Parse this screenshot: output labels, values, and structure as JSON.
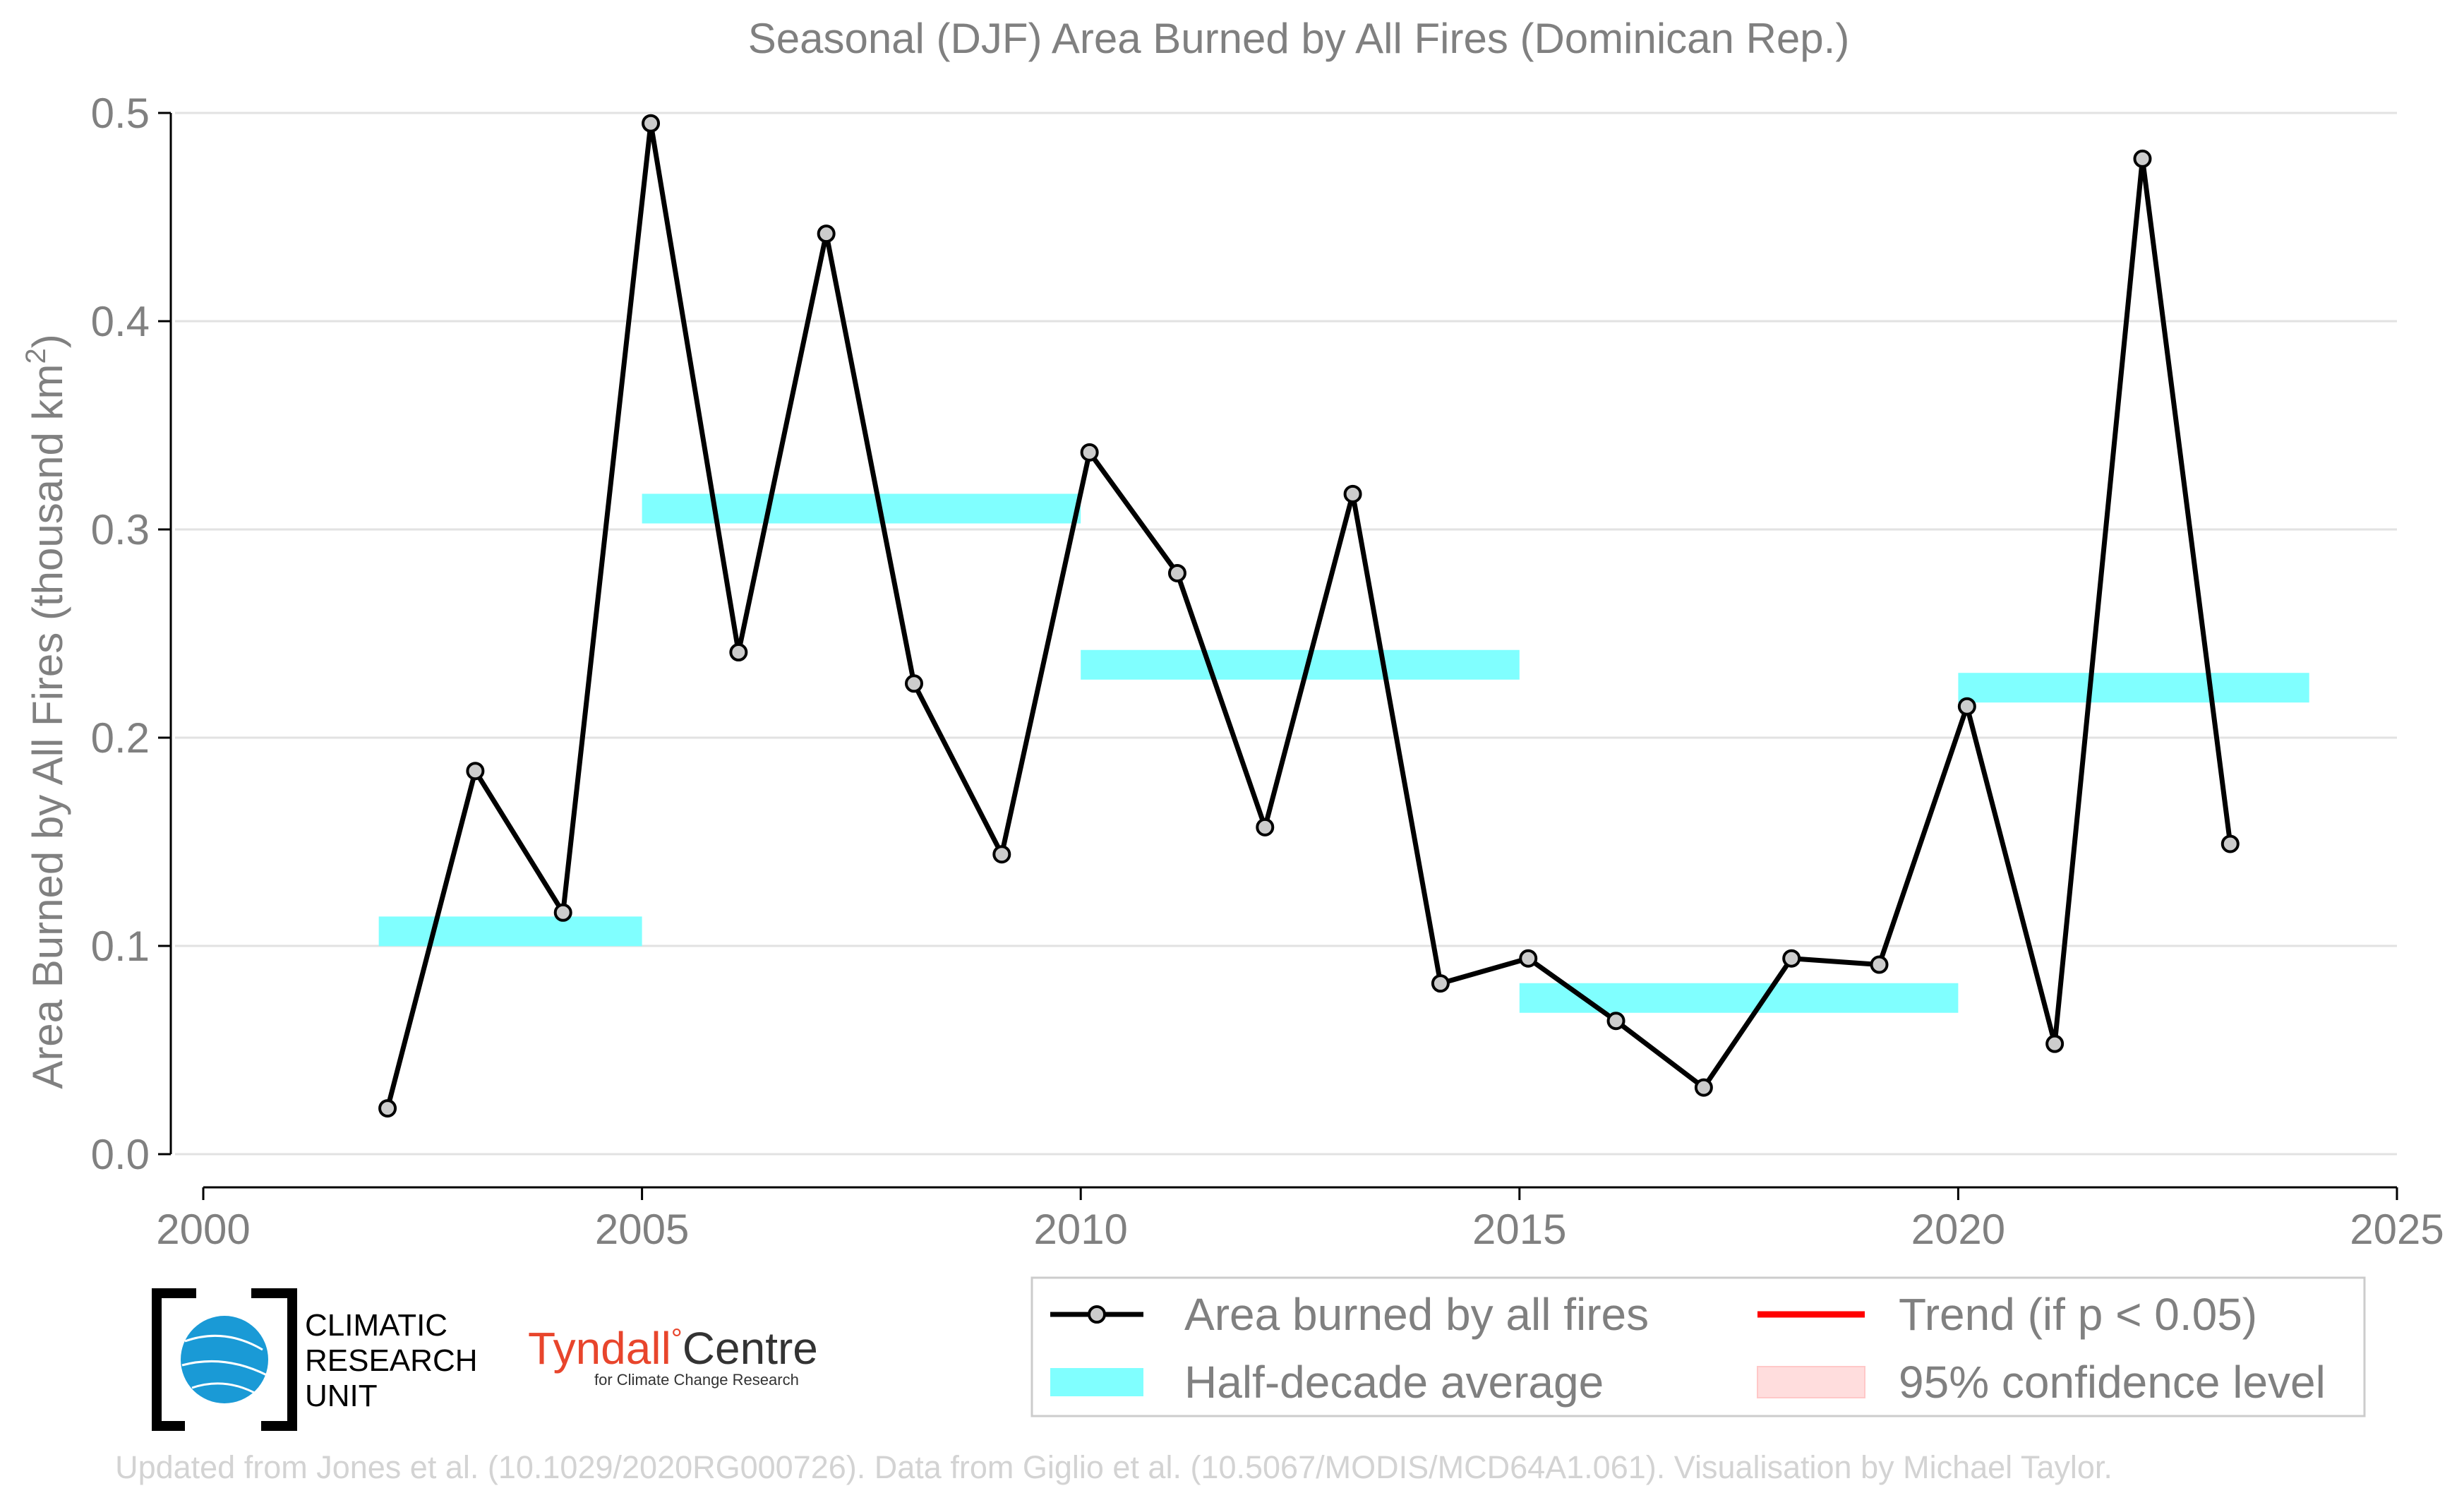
{
  "chart_data": {
    "type": "line",
    "title": "Seasonal (DJF) Area Burned by All Fires (Dominican Rep.)",
    "ylabel": "Area Burned by All Fires (thousand km",
    "ylabel_sup": "2",
    "ylabel_close": ")",
    "xlabel": "",
    "xlim": [
      2000,
      2025
    ],
    "ylim": [
      0,
      0.5
    ],
    "x_ticks": [
      2000,
      2005,
      2010,
      2015,
      2020,
      2025
    ],
    "x_tick_labels": [
      "2000",
      "2005",
      "2010",
      "2015",
      "2020",
      "2025"
    ],
    "y_ticks": [
      0,
      0.1,
      0.2,
      0.3,
      0.4,
      0.5
    ],
    "y_tick_labels": [
      "0.0",
      "0.1",
      "0.2",
      "0.3",
      "0.4",
      "0.5"
    ],
    "grid": "horizontal",
    "legend_position": "bottom-right",
    "series": [
      {
        "name": "Area burned by all fires",
        "color": "#000000",
        "marker_fill": "#cccccc",
        "x": [
          2002,
          2003,
          2004,
          2005,
          2006,
          2007,
          2008,
          2009,
          2010,
          2011,
          2012,
          2013,
          2014,
          2015,
          2016,
          2017,
          2018,
          2019,
          2020,
          2021,
          2022,
          2023
        ],
        "values": [
          0.022,
          0.184,
          0.116,
          0.495,
          0.241,
          0.442,
          0.226,
          0.144,
          0.337,
          0.279,
          0.157,
          0.317,
          0.082,
          0.094,
          0.064,
          0.032,
          0.094,
          0.091,
          0.215,
          0.053,
          0.478,
          0.149
        ]
      }
    ],
    "half_decade_averages": {
      "name": "Half-decade average",
      "color": "#80ffff",
      "segments": [
        {
          "x_start": 2002,
          "x_end": 2005,
          "value": 0.107
        },
        {
          "x_start": 2005,
          "x_end": 2010,
          "value": 0.31
        },
        {
          "x_start": 2010,
          "x_end": 2015,
          "value": 0.235
        },
        {
          "x_start": 2015,
          "x_end": 2020,
          "value": 0.075
        },
        {
          "x_start": 2020,
          "x_end": 2024,
          "value": 0.224
        }
      ]
    },
    "legend": [
      {
        "label": "Area burned by all fires",
        "kind": "line-marker",
        "color": "#000000"
      },
      {
        "label": "Trend (if p < 0.05)",
        "kind": "line",
        "color": "#ff0000"
      },
      {
        "label": "Half-decade average",
        "kind": "band",
        "color": "#80ffff"
      },
      {
        "label": "95% confidence level",
        "kind": "band",
        "color": "#ffdddd"
      }
    ]
  },
  "logos": {
    "cru": {
      "line1": "CLIMATIC",
      "line2": "RESEARCH",
      "line3": "UNIT"
    },
    "tyndall": {
      "name_part1": "Tyndall",
      "degree": "°",
      "name_part2": "Centre",
      "subtitle": "for Climate Change Research"
    }
  },
  "footer": "Updated from Jones et al. (10.1029/2020RG000726). Data from Giglio et al. (10.5067/MODIS/MCD64A1.061). Visualisation by Michael Taylor."
}
